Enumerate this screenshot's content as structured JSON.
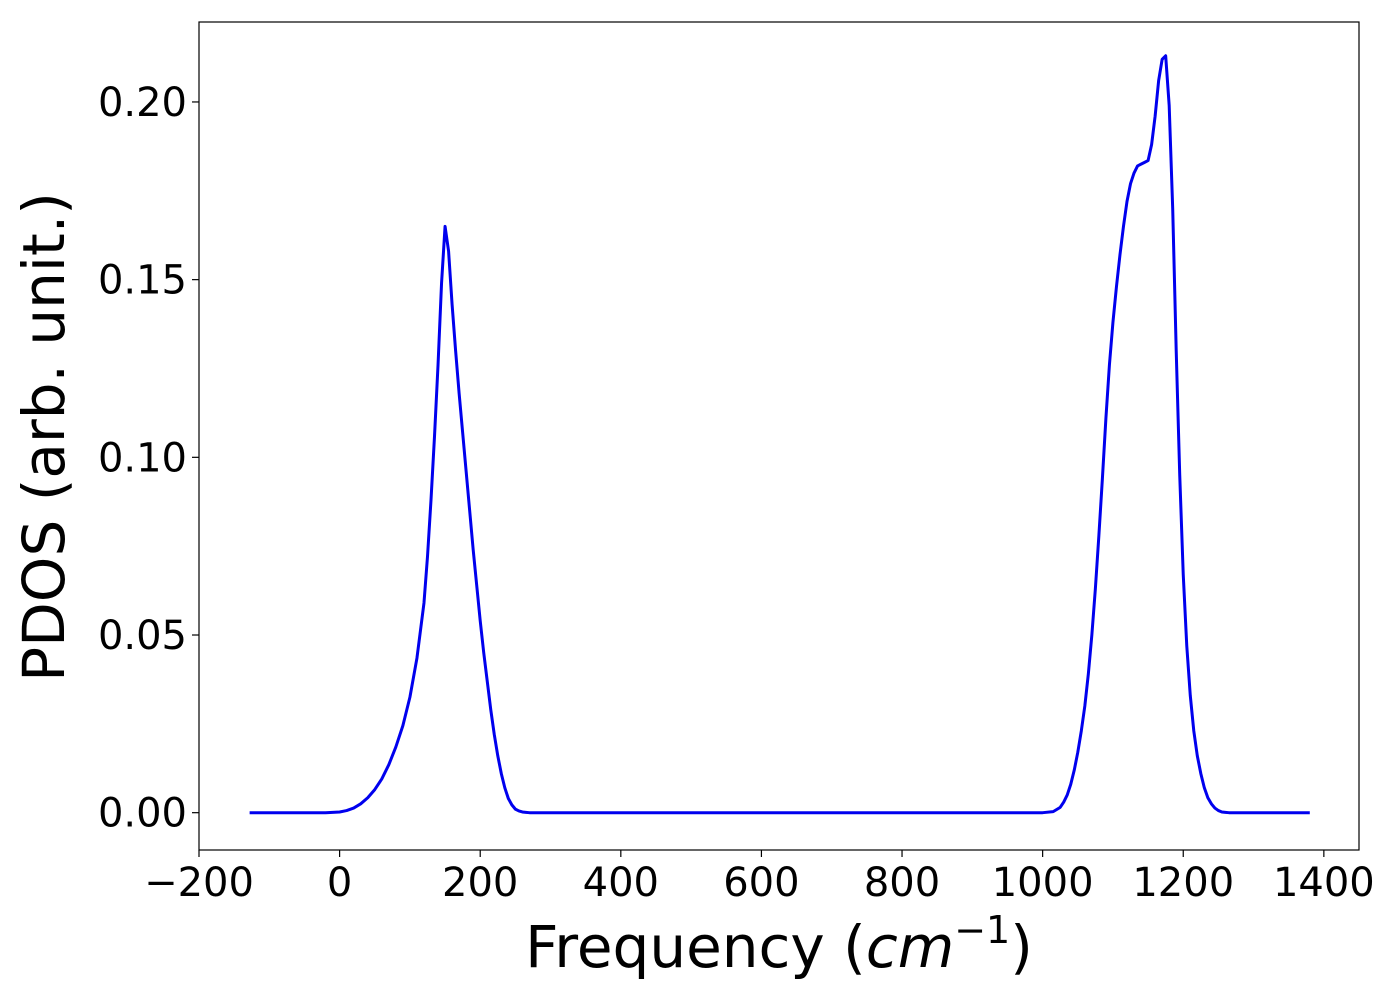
{
  "chart_data": {
    "type": "line",
    "xlabel": "Frequency (cm⁻¹)",
    "xlabel_parts": {
      "prefix": "Frequency (",
      "unit": "cm",
      "exponent": "−1",
      "suffix": ")"
    },
    "ylabel": "PDOS (arb. unit.)",
    "xlim": [
      -200,
      1450
    ],
    "ylim": [
      -0.0105,
      0.2225
    ],
    "xticks": [
      -200,
      0,
      200,
      400,
      600,
      800,
      1000,
      1200,
      1400
    ],
    "xtick_labels": [
      "−200",
      "0",
      "200",
      "400",
      "600",
      "800",
      "1000",
      "1200",
      "1400"
    ],
    "yticks": [
      0.0,
      0.05,
      0.1,
      0.15,
      0.2
    ],
    "ytick_labels": [
      "0.00",
      "0.05",
      "0.10",
      "0.15",
      "0.20"
    ],
    "grid": false,
    "series": [
      {
        "color": "#0000ee",
        "x": [
          -128,
          -60,
          -20,
          0,
          10,
          20,
          30,
          40,
          50,
          60,
          70,
          80,
          90,
          100,
          110,
          120,
          125,
          130,
          135,
          140,
          145,
          150,
          155,
          160,
          165,
          170,
          175,
          180,
          185,
          190,
          195,
          200,
          205,
          210,
          215,
          220,
          225,
          230,
          235,
          240,
          245,
          250,
          255,
          260,
          265,
          270,
          280,
          300,
          400,
          600,
          800,
          900,
          1000,
          1015,
          1025,
          1030,
          1035,
          1040,
          1045,
          1050,
          1055,
          1060,
          1065,
          1070,
          1075,
          1080,
          1085,
          1090,
          1095,
          1100,
          1105,
          1110,
          1115,
          1120,
          1125,
          1130,
          1135,
          1140,
          1145,
          1150,
          1155,
          1160,
          1165,
          1170,
          1175,
          1180,
          1185,
          1190,
          1195,
          1200,
          1205,
          1210,
          1215,
          1220,
          1225,
          1230,
          1235,
          1240,
          1245,
          1250,
          1255,
          1260,
          1265,
          1270,
          1275,
          1280,
          1290,
          1310,
          1380
        ],
        "y": [
          0.0,
          0.0,
          0.0,
          0.0002,
          0.0006,
          0.0013,
          0.0025,
          0.0042,
          0.0065,
          0.0095,
          0.0135,
          0.0185,
          0.0245,
          0.0325,
          0.0435,
          0.059,
          0.072,
          0.088,
          0.106,
          0.126,
          0.149,
          0.165,
          0.158,
          0.143,
          0.13,
          0.118,
          0.107,
          0.096,
          0.085,
          0.074,
          0.064,
          0.054,
          0.045,
          0.037,
          0.029,
          0.022,
          0.016,
          0.011,
          0.007,
          0.004,
          0.0022,
          0.001,
          0.0005,
          0.0002,
          0.0001,
          0.0,
          0.0,
          0.0,
          0.0,
          0.0,
          0.0,
          0.0,
          0.0,
          0.0003,
          0.0015,
          0.003,
          0.005,
          0.008,
          0.012,
          0.017,
          0.023,
          0.03,
          0.039,
          0.05,
          0.063,
          0.078,
          0.094,
          0.111,
          0.126,
          0.138,
          0.148,
          0.157,
          0.165,
          0.172,
          0.177,
          0.18,
          0.182,
          0.1825,
          0.183,
          0.1835,
          0.188,
          0.196,
          0.206,
          0.212,
          0.213,
          0.199,
          0.17,
          0.13,
          0.095,
          0.067,
          0.047,
          0.033,
          0.023,
          0.016,
          0.011,
          0.007,
          0.0042,
          0.0025,
          0.0013,
          0.0006,
          0.0002,
          0.0001,
          0.0,
          0.0,
          0.0,
          0.0,
          0.0,
          0.0,
          0.0
        ]
      }
    ]
  }
}
